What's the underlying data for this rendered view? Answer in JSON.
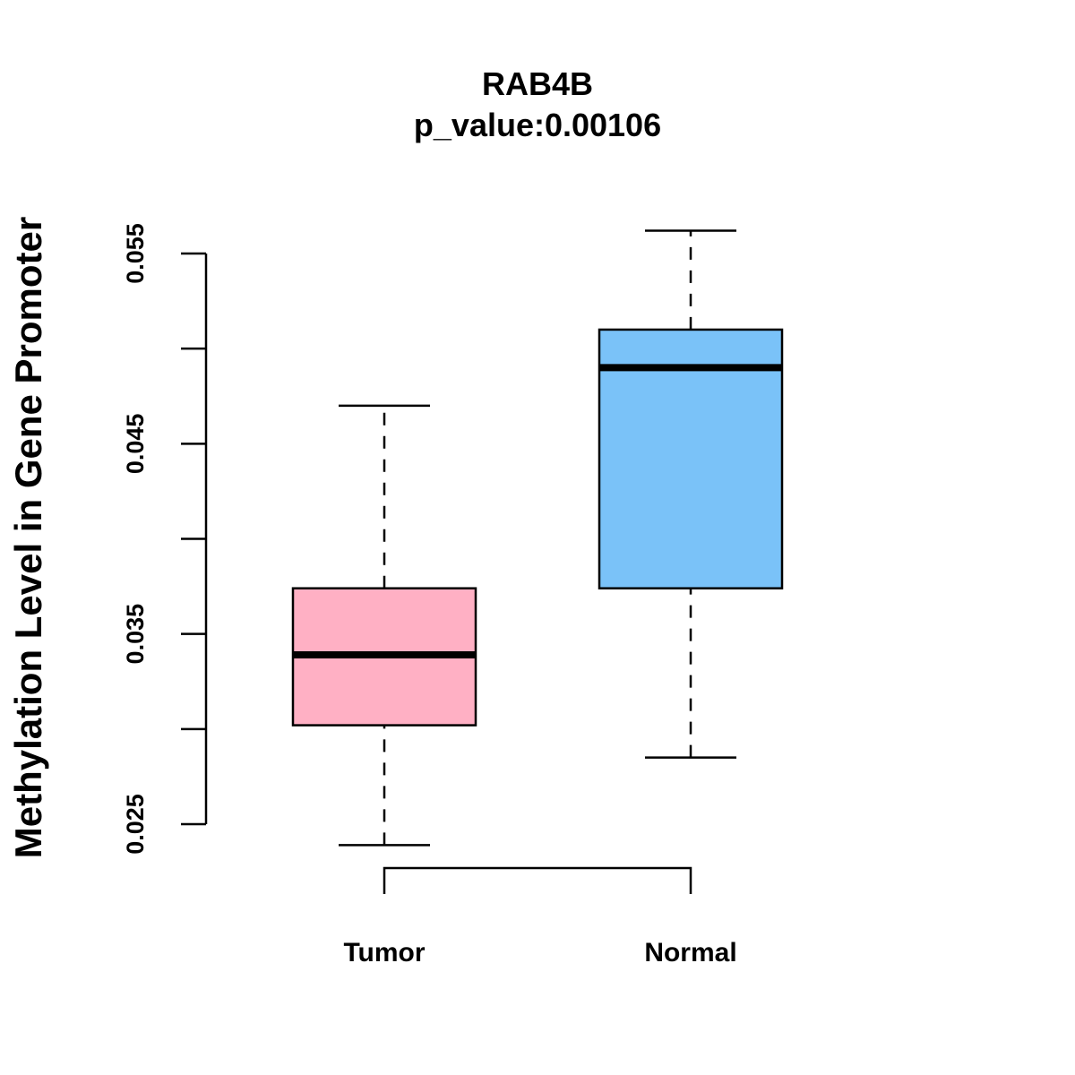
{
  "chart_data": {
    "type": "boxplot",
    "title": "RAB4B",
    "subtitle": "p_value:0.00106",
    "ylabel": "Methylation Level in Gene Promoter",
    "xlabel": "",
    "ylim": [
      0.025,
      0.055
    ],
    "yticks": [
      0.025,
      0.03,
      0.035,
      0.04,
      0.045,
      0.05,
      0.055
    ],
    "ytick_labels": [
      "0.025",
      "",
      "0.035",
      "",
      "0.045",
      "",
      "0.055"
    ],
    "grid": false,
    "categories": [
      "Tumor",
      "Normal"
    ],
    "boxes": [
      {
        "name": "Tumor",
        "color": "#FFB0C4",
        "whisker_low": 0.0239,
        "q1": 0.0302,
        "median": 0.0339,
        "q3": 0.0374,
        "whisker_high": 0.047
      },
      {
        "name": "Normal",
        "color": "#7AC2F8",
        "whisker_low": 0.0285,
        "q1": 0.0374,
        "median": 0.049,
        "q3": 0.051,
        "whisker_high": 0.0562
      }
    ],
    "bracket": {
      "from": "Tumor",
      "to": "Normal"
    }
  }
}
